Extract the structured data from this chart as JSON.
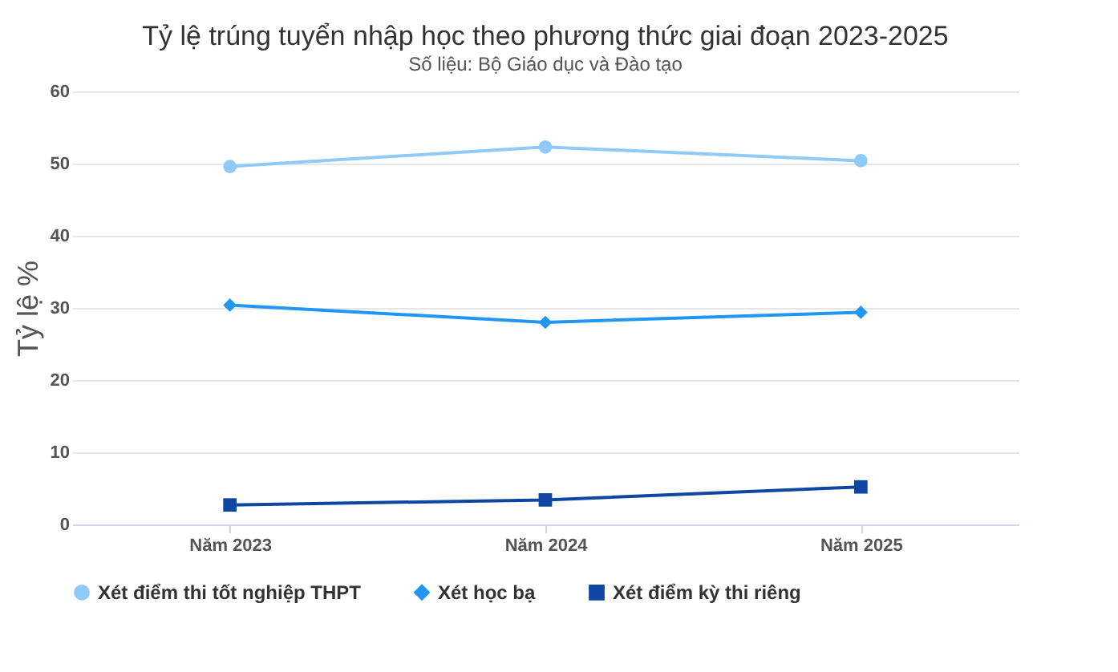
{
  "chart_data": {
    "type": "line",
    "title": "Tỷ lệ trúng tuyển nhập học theo phương thức giai đoạn 2023-2025",
    "subtitle": "Số liệu: Bộ Giáo dục và Đào tạo",
    "ylabel": "Tỷ lệ %",
    "categories": [
      "Năm 2023",
      "Năm 2024",
      "Năm 2025"
    ],
    "series": [
      {
        "name": "Xét điểm thi tốt nghiệp THPT",
        "color": "#90caf9",
        "marker": "circle",
        "values": [
          49.6,
          52.3,
          50.4
        ]
      },
      {
        "name": "Xét học bạ",
        "color": "#2196f3",
        "marker": "diamond",
        "values": [
          30.4,
          28.0,
          29.4
        ]
      },
      {
        "name": "Xét điểm kỳ thi riêng",
        "color": "#0d47a1",
        "marker": "square",
        "values": [
          2.7,
          3.4,
          5.2
        ]
      }
    ],
    "ylim": [
      0,
      60
    ],
    "yticks": [
      0,
      10,
      20,
      30,
      40,
      50,
      60
    ],
    "grid": "y",
    "legend": "bottom"
  }
}
